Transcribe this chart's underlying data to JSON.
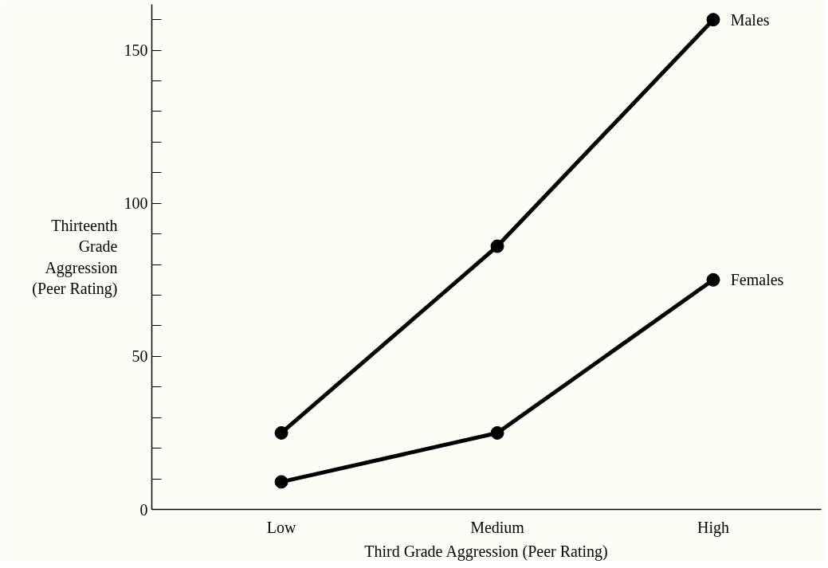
{
  "chart_data": {
    "type": "line",
    "xlabel": "Third Grade Aggression (Peer Rating)",
    "ylabel": "Thirteenth\nGrade\nAggression\n(Peer Rating)",
    "categories": [
      "Low",
      "Medium",
      "High"
    ],
    "series": [
      {
        "name": "Males",
        "color": "#000000",
        "values": [
          25,
          86,
          160
        ]
      },
      {
        "name": "Females",
        "color": "#000000",
        "values": [
          9,
          25,
          75
        ]
      }
    ],
    "ylim": [
      0,
      165
    ],
    "yticks": [
      0,
      {
        "value": 10,
        "label": null
      },
      {
        "value": 20,
        "label": null
      },
      {
        "value": 30,
        "label": null
      },
      {
        "value": 40,
        "label": null
      },
      50,
      {
        "value": 60,
        "label": null
      },
      {
        "value": 70,
        "label": null
      },
      {
        "value": 80,
        "label": null
      },
      {
        "value": 90,
        "label": null
      },
      100,
      {
        "value": 110,
        "label": null
      },
      {
        "value": 120,
        "label": null
      },
      {
        "value": 130,
        "label": null
      },
      {
        "value": 140,
        "label": null
      },
      150,
      {
        "value": 160,
        "label": null
      }
    ],
    "marker": "circle",
    "line_style": "solid",
    "grid": false,
    "legend": false
  }
}
